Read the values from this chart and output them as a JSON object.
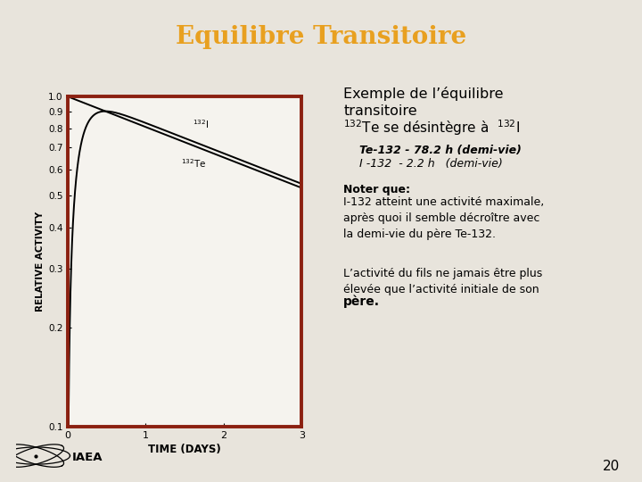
{
  "title": "Equilibre Transitoire",
  "title_color": "#E8A020",
  "title_bg_color": "#BEC3D4",
  "main_bg_color": "#E8E4DC",
  "plot_bg_color": "#F5F3EE",
  "plot_border_color": "#8B2010",
  "T1_half_days": 3.258,
  "T2_half_days": 0.09167,
  "x_max": 3.0,
  "x_label": "TIME (DAYS)",
  "y_label": "RELATIVE ACTIVITY",
  "y_min": 0.1,
  "y_max": 1.0,
  "page_number": "20",
  "line_color": "#000000",
  "line_width": 1.4
}
